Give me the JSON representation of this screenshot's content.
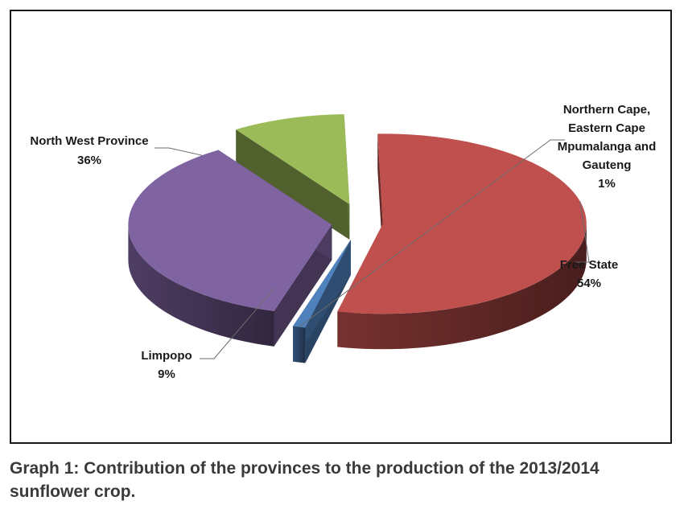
{
  "chart_data": {
    "type": "pie",
    "style": "3d-exploded",
    "slices": [
      {
        "label": "Free State",
        "value": 54,
        "value_label": "54%",
        "color": "#c0504d"
      },
      {
        "label": "Northern Cape, Eastern Cape Mpumalanga and Gauteng",
        "label_lines": [
          "Northern Cape,",
          "Eastern Cape",
          "Mpumalanga and",
          "Gauteng"
        ],
        "value": 1,
        "value_label": "1%",
        "color": "#4f81bd"
      },
      {
        "label": "North West Province",
        "value": 36,
        "value_label": "36%",
        "color": "#8064a2"
      },
      {
        "label": "Limpopo",
        "value": 9,
        "value_label": "9%",
        "color": "#9bbb59"
      }
    ]
  },
  "caption": "Graph 1: Contribution of the provinces to the production of the 2013/2014 sunflower crop."
}
